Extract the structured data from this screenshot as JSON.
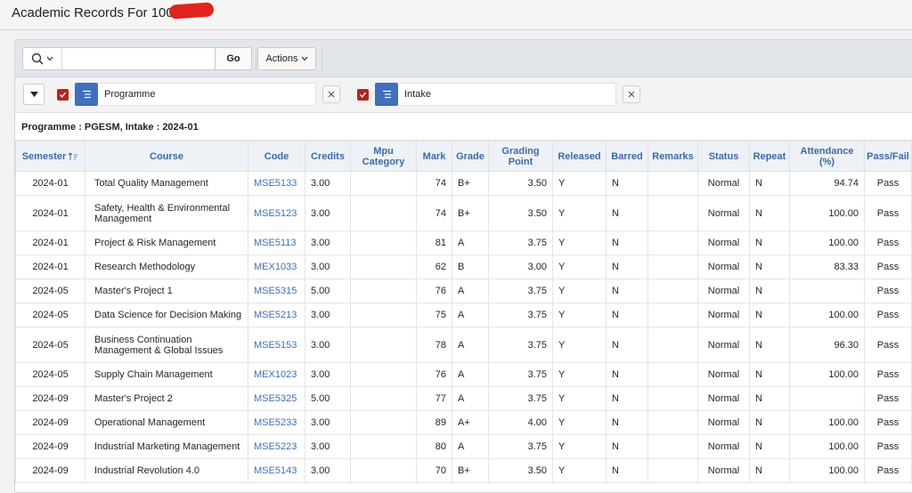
{
  "page": {
    "title": "Academic Records For 10023"
  },
  "toolbar": {
    "search_value": "",
    "go_label": "Go",
    "actions_label": "Actions"
  },
  "filters": [
    {
      "label": "Programme",
      "checked": true
    },
    {
      "label": "Intake",
      "checked": true
    }
  ],
  "group": {
    "label": "Programme : PGESM, Intake : 2024-01"
  },
  "table": {
    "headers": [
      "Semester",
      "Course",
      "Code",
      "Credits",
      "Mpu Category",
      "Mark",
      "Grade",
      "Grading Point",
      "Released",
      "Barred",
      "Remarks",
      "Status",
      "Repeat",
      "Attendance (%)",
      "Pass/Fail"
    ],
    "rows": [
      {
        "semester": "2024-01",
        "course": "Total Quality Management",
        "code": "MSE5133",
        "credits": "3.00",
        "mpu": "",
        "mark": "74",
        "grade": "B+",
        "gp": "3.50",
        "released": "Y",
        "barred": "N",
        "remarks": "",
        "status": "Normal",
        "repeat": "N",
        "attendance": "94.74",
        "passfail": "Pass"
      },
      {
        "semester": "2024-01",
        "course": "Safety, Health & Environmental Management",
        "code": "MSE5123",
        "credits": "3.00",
        "mpu": "",
        "mark": "74",
        "grade": "B+",
        "gp": "3.50",
        "released": "Y",
        "barred": "N",
        "remarks": "",
        "status": "Normal",
        "repeat": "N",
        "attendance": "100.00",
        "passfail": "Pass"
      },
      {
        "semester": "2024-01",
        "course": "Project & Risk Management",
        "code": "MSE5113",
        "credits": "3.00",
        "mpu": "",
        "mark": "81",
        "grade": "A",
        "gp": "3.75",
        "released": "Y",
        "barred": "N",
        "remarks": "",
        "status": "Normal",
        "repeat": "N",
        "attendance": "100.00",
        "passfail": "Pass"
      },
      {
        "semester": "2024-01",
        "course": "Research Methodology",
        "code": "MEX1033",
        "credits": "3.00",
        "mpu": "",
        "mark": "62",
        "grade": "B",
        "gp": "3.00",
        "released": "Y",
        "barred": "N",
        "remarks": "",
        "status": "Normal",
        "repeat": "N",
        "attendance": "83.33",
        "passfail": "Pass"
      },
      {
        "semester": "2024-05",
        "course": "Master's Project 1",
        "code": "MSE5315",
        "credits": "5.00",
        "mpu": "",
        "mark": "76",
        "grade": "A",
        "gp": "3.75",
        "released": "Y",
        "barred": "N",
        "remarks": "",
        "status": "Normal",
        "repeat": "N",
        "attendance": "",
        "passfail": "Pass"
      },
      {
        "semester": "2024-05",
        "course": "Data Science for Decision Making",
        "code": "MSE5213",
        "credits": "3.00",
        "mpu": "",
        "mark": "75",
        "grade": "A",
        "gp": "3.75",
        "released": "Y",
        "barred": "N",
        "remarks": "",
        "status": "Normal",
        "repeat": "N",
        "attendance": "100.00",
        "passfail": "Pass"
      },
      {
        "semester": "2024-05",
        "course": "Business Continuation Management & Global Issues",
        "code": "MSE5153",
        "credits": "3.00",
        "mpu": "",
        "mark": "78",
        "grade": "A",
        "gp": "3.75",
        "released": "Y",
        "barred": "N",
        "remarks": "",
        "status": "Normal",
        "repeat": "N",
        "attendance": "96.30",
        "passfail": "Pass"
      },
      {
        "semester": "2024-05",
        "course": "Supply Chain Management",
        "code": "MEX1023",
        "credits": "3.00",
        "mpu": "",
        "mark": "76",
        "grade": "A",
        "gp": "3.75",
        "released": "Y",
        "barred": "N",
        "remarks": "",
        "status": "Normal",
        "repeat": "N",
        "attendance": "100.00",
        "passfail": "Pass"
      },
      {
        "semester": "2024-09",
        "course": "Master's Project 2",
        "code": "MSE5325",
        "credits": "5.00",
        "mpu": "",
        "mark": "77",
        "grade": "A",
        "gp": "3.75",
        "released": "Y",
        "barred": "N",
        "remarks": "",
        "status": "Normal",
        "repeat": "N",
        "attendance": "",
        "passfail": "Pass"
      },
      {
        "semester": "2024-09",
        "course": "Operational Management",
        "code": "MSE5233",
        "credits": "3.00",
        "mpu": "",
        "mark": "89",
        "grade": "A+",
        "gp": "4.00",
        "released": "Y",
        "barred": "N",
        "remarks": "",
        "status": "Normal",
        "repeat": "N",
        "attendance": "100.00",
        "passfail": "Pass"
      },
      {
        "semester": "2024-09",
        "course": "Industrial Marketing Management",
        "code": "MSE5223",
        "credits": "3.00",
        "mpu": "",
        "mark": "80",
        "grade": "A",
        "gp": "3.75",
        "released": "Y",
        "barred": "N",
        "remarks": "",
        "status": "Normal",
        "repeat": "N",
        "attendance": "100.00",
        "passfail": "Pass"
      },
      {
        "semester": "2024-09",
        "course": "Industrial Revolution 4.0",
        "code": "MSE5143",
        "credits": "3.00",
        "mpu": "",
        "mark": "70",
        "grade": "B+",
        "gp": "3.50",
        "released": "Y",
        "barred": "N",
        "remarks": "",
        "status": "Normal",
        "repeat": "N",
        "attendance": "100.00",
        "passfail": "Pass"
      }
    ]
  },
  "colors": {
    "accent": "#3c6aa6",
    "link": "#3d6fb6",
    "checkbox": "#b32620",
    "filter_icon": "#3f6fbd"
  }
}
